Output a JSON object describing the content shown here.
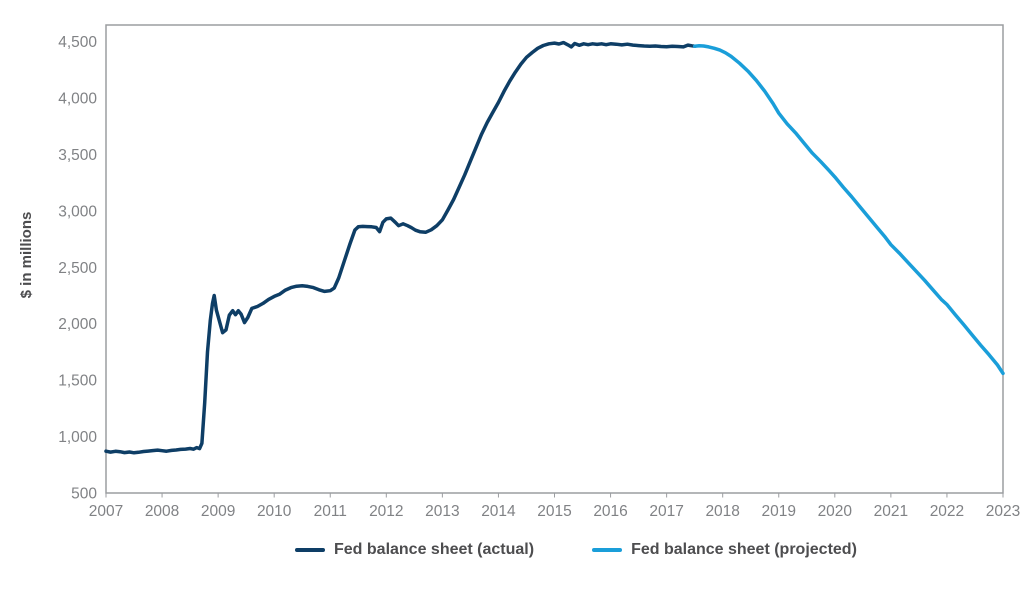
{
  "chart_data": {
    "type": "line",
    "title": "",
    "xlabel": "",
    "ylabel": "$ in millions",
    "xlim": [
      2007,
      2023
    ],
    "ylim": [
      500,
      4500
    ],
    "grid": false,
    "legend_position": "bottom",
    "x_ticks": [
      "2007",
      "2008",
      "2009",
      "2010",
      "2011",
      "2012",
      "2013",
      "2014",
      "2015",
      "2016",
      "2017",
      "2018",
      "2019",
      "2020",
      "2021",
      "2022",
      "2023"
    ],
    "y_ticks": [
      "500",
      "1,000",
      "1,500",
      "2,000",
      "2,500",
      "3,000",
      "3,500",
      "4,000",
      "4,500"
    ],
    "y_tick_values": [
      500,
      1000,
      1500,
      2000,
      2500,
      3000,
      3500,
      4000,
      4500
    ],
    "axis_color": "#9b9da0",
    "tick_label_color": "#808285",
    "series": [
      {
        "name": "Fed balance sheet (actual)",
        "color": "#0e3e66",
        "points": [
          [
            2007.0,
            870
          ],
          [
            2007.08,
            862
          ],
          [
            2007.17,
            869
          ],
          [
            2007.25,
            866
          ],
          [
            2007.33,
            858
          ],
          [
            2007.42,
            863
          ],
          [
            2007.5,
            856
          ],
          [
            2007.58,
            861
          ],
          [
            2007.67,
            868
          ],
          [
            2007.75,
            871
          ],
          [
            2007.83,
            876
          ],
          [
            2007.92,
            880
          ],
          [
            2008.0,
            875
          ],
          [
            2008.08,
            870
          ],
          [
            2008.17,
            877
          ],
          [
            2008.25,
            881
          ],
          [
            2008.33,
            886
          ],
          [
            2008.42,
            889
          ],
          [
            2008.5,
            894
          ],
          [
            2008.56,
            888
          ],
          [
            2008.62,
            902
          ],
          [
            2008.67,
            893
          ],
          [
            2008.71,
            940
          ],
          [
            2008.76,
            1300
          ],
          [
            2008.81,
            1750
          ],
          [
            2008.86,
            2030
          ],
          [
            2008.9,
            2180
          ],
          [
            2008.93,
            2250
          ],
          [
            2008.97,
            2120
          ],
          [
            2009.02,
            2030
          ],
          [
            2009.08,
            1920
          ],
          [
            2009.14,
            1945
          ],
          [
            2009.2,
            2075
          ],
          [
            2009.26,
            2115
          ],
          [
            2009.31,
            2080
          ],
          [
            2009.36,
            2115
          ],
          [
            2009.41,
            2085
          ],
          [
            2009.47,
            2010
          ],
          [
            2009.53,
            2055
          ],
          [
            2009.6,
            2135
          ],
          [
            2009.7,
            2152
          ],
          [
            2009.8,
            2180
          ],
          [
            2009.9,
            2215
          ],
          [
            2010.0,
            2242
          ],
          [
            2010.1,
            2262
          ],
          [
            2010.2,
            2298
          ],
          [
            2010.3,
            2320
          ],
          [
            2010.4,
            2332
          ],
          [
            2010.5,
            2336
          ],
          [
            2010.6,
            2330
          ],
          [
            2010.7,
            2320
          ],
          [
            2010.8,
            2300
          ],
          [
            2010.9,
            2286
          ],
          [
            2011.0,
            2292
          ],
          [
            2011.07,
            2315
          ],
          [
            2011.15,
            2405
          ],
          [
            2011.25,
            2555
          ],
          [
            2011.35,
            2705
          ],
          [
            2011.44,
            2830
          ],
          [
            2011.5,
            2858
          ],
          [
            2011.58,
            2862
          ],
          [
            2011.66,
            2860
          ],
          [
            2011.74,
            2858
          ],
          [
            2011.82,
            2852
          ],
          [
            2011.88,
            2815
          ],
          [
            2011.94,
            2898
          ],
          [
            2012.0,
            2928
          ],
          [
            2012.08,
            2935
          ],
          [
            2012.16,
            2898
          ],
          [
            2012.22,
            2868
          ],
          [
            2012.3,
            2885
          ],
          [
            2012.38,
            2868
          ],
          [
            2012.45,
            2850
          ],
          [
            2012.52,
            2828
          ],
          [
            2012.6,
            2815
          ],
          [
            2012.7,
            2810
          ],
          [
            2012.8,
            2832
          ],
          [
            2012.9,
            2868
          ],
          [
            2013.0,
            2920
          ],
          [
            2013.1,
            3008
          ],
          [
            2013.2,
            3100
          ],
          [
            2013.3,
            3210
          ],
          [
            2013.4,
            3320
          ],
          [
            2013.5,
            3440
          ],
          [
            2013.6,
            3560
          ],
          [
            2013.7,
            3680
          ],
          [
            2013.8,
            3782
          ],
          [
            2013.9,
            3872
          ],
          [
            2014.0,
            3960
          ],
          [
            2014.1,
            4058
          ],
          [
            2014.2,
            4148
          ],
          [
            2014.3,
            4228
          ],
          [
            2014.4,
            4300
          ],
          [
            2014.5,
            4360
          ],
          [
            2014.6,
            4402
          ],
          [
            2014.7,
            4440
          ],
          [
            2014.8,
            4465
          ],
          [
            2014.9,
            4480
          ],
          [
            2015.0,
            4486
          ],
          [
            2015.08,
            4478
          ],
          [
            2015.16,
            4490
          ],
          [
            2015.24,
            4470
          ],
          [
            2015.3,
            4452
          ],
          [
            2015.36,
            4482
          ],
          [
            2015.44,
            4466
          ],
          [
            2015.52,
            4480
          ],
          [
            2015.6,
            4472
          ],
          [
            2015.68,
            4480
          ],
          [
            2015.76,
            4474
          ],
          [
            2015.84,
            4480
          ],
          [
            2015.92,
            4472
          ],
          [
            2016.0,
            4480
          ],
          [
            2016.1,
            4476
          ],
          [
            2016.2,
            4470
          ],
          [
            2016.3,
            4476
          ],
          [
            2016.4,
            4468
          ],
          [
            2016.5,
            4464
          ],
          [
            2016.6,
            4460
          ],
          [
            2016.7,
            4458
          ],
          [
            2016.8,
            4460
          ],
          [
            2016.9,
            4456
          ],
          [
            2017.0,
            4454
          ],
          [
            2017.1,
            4458
          ],
          [
            2017.2,
            4456
          ],
          [
            2017.3,
            4452
          ],
          [
            2017.38,
            4468
          ],
          [
            2017.45,
            4462
          ],
          [
            2017.5,
            4458
          ]
        ]
      },
      {
        "name": "Fed balance sheet (projected)",
        "color": "#1a9ed9",
        "points": [
          [
            2017.5,
            4458
          ],
          [
            2017.58,
            4462
          ],
          [
            2017.66,
            4460
          ],
          [
            2017.75,
            4452
          ],
          [
            2017.85,
            4440
          ],
          [
            2017.95,
            4424
          ],
          [
            2018.05,
            4400
          ],
          [
            2018.15,
            4368
          ],
          [
            2018.3,
            4308
          ],
          [
            2018.45,
            4238
          ],
          [
            2018.6,
            4155
          ],
          [
            2018.75,
            4060
          ],
          [
            2018.9,
            3950
          ],
          [
            2019.0,
            3865
          ],
          [
            2019.15,
            3770
          ],
          [
            2019.3,
            3690
          ],
          [
            2019.45,
            3600
          ],
          [
            2019.6,
            3510
          ],
          [
            2019.75,
            3435
          ],
          [
            2019.9,
            3355
          ],
          [
            2020.0,
            3300
          ],
          [
            2020.15,
            3210
          ],
          [
            2020.3,
            3125
          ],
          [
            2020.45,
            3035
          ],
          [
            2020.6,
            2945
          ],
          [
            2020.75,
            2855
          ],
          [
            2020.9,
            2765
          ],
          [
            2021.0,
            2700
          ],
          [
            2021.15,
            2625
          ],
          [
            2021.3,
            2545
          ],
          [
            2021.45,
            2465
          ],
          [
            2021.6,
            2385
          ],
          [
            2021.75,
            2300
          ],
          [
            2021.9,
            2215
          ],
          [
            2022.0,
            2170
          ],
          [
            2022.15,
            2080
          ],
          [
            2022.3,
            1990
          ],
          [
            2022.45,
            1900
          ],
          [
            2022.6,
            1810
          ],
          [
            2022.75,
            1725
          ],
          [
            2022.9,
            1635
          ],
          [
            2023.0,
            1560
          ]
        ]
      }
    ]
  }
}
